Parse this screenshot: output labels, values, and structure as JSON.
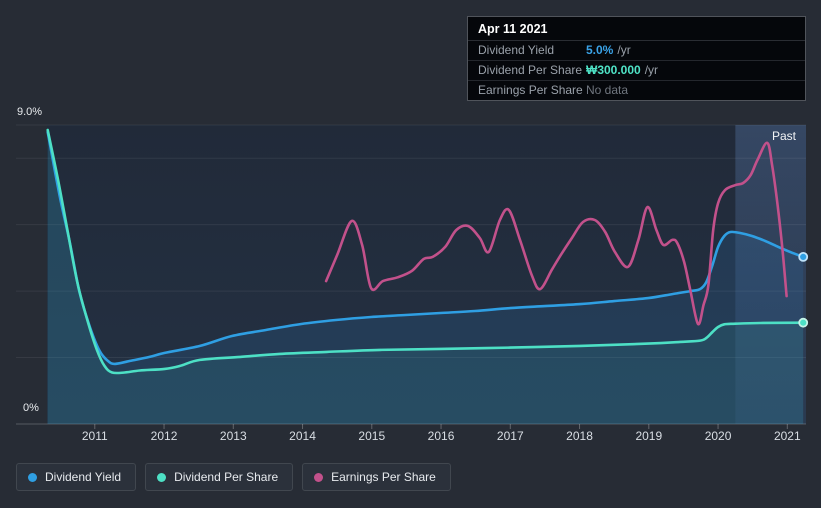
{
  "page": {
    "background": "#272c35"
  },
  "tooltip": {
    "date": "Apr 11 2021",
    "rows": [
      {
        "label": "Dividend Yield",
        "value": "5.0%",
        "suffix": "/yr",
        "value_color": "#3aa3e8"
      },
      {
        "label": "Dividend Per Share",
        "value": "₩300.000",
        "suffix": "/yr",
        "value_color": "#4fe4c7"
      },
      {
        "label": "Earnings Per Share",
        "value": "No data",
        "suffix": "",
        "value_color": "#70767f"
      }
    ]
  },
  "past_label": "Past",
  "axis": {
    "y_top_label": "9.0%",
    "y_bottom_label": "0%",
    "years": [
      "2011",
      "2012",
      "2013",
      "2014",
      "2015",
      "2016",
      "2017",
      "2018",
      "2019",
      "2020",
      "2021"
    ]
  },
  "legend": [
    {
      "label": "Dividend Yield",
      "color": "#2f9fe3"
    },
    {
      "label": "Dividend Per Share",
      "color": "#4de0c5"
    },
    {
      "label": "Earnings Per Share",
      "color": "#c2518b"
    }
  ],
  "chart_data": {
    "type": "line",
    "title": "",
    "xlabel": "",
    "ylabel": "",
    "xlim": [
      2010.31,
      2021.27
    ],
    "ylim": [
      0,
      9
    ],
    "yticks": [
      {
        "value": 0,
        "label": "0%"
      },
      {
        "value": 9,
        "label": "9.0%"
      }
    ],
    "y_gridlines_pct": [
      2,
      4,
      6,
      8,
      9
    ],
    "grid": true,
    "legend_position": "bottom-left",
    "past_band_start_year": 2020.25,
    "highlight_date": "Apr 11 2021",
    "highlight_values": {
      "dividend_yield": "5.0% /yr",
      "dividend_per_share": "₩300.000 /yr",
      "earnings_per_share": "No data"
    },
    "series": [
      {
        "name": "Dividend Yield",
        "color": "#2f9fe3",
        "area_fill": "rgba(45,120,190,0.18)",
        "end_dot": true,
        "dot_ring": "#bfe3fa",
        "points": [
          [
            2010.32,
            8.79
          ],
          [
            2010.49,
            6.89
          ],
          [
            2010.64,
            5.45
          ],
          [
            2010.78,
            3.97
          ],
          [
            2010.93,
            2.92
          ],
          [
            2011.07,
            2.2
          ],
          [
            2011.19,
            1.9
          ],
          [
            2011.29,
            1.81
          ],
          [
            2011.51,
            1.9
          ],
          [
            2011.79,
            2.02
          ],
          [
            2012.01,
            2.14
          ],
          [
            2012.52,
            2.35
          ],
          [
            2012.98,
            2.65
          ],
          [
            2013.47,
            2.83
          ],
          [
            2013.98,
            3.01
          ],
          [
            2014.48,
            3.13
          ],
          [
            2014.99,
            3.22
          ],
          [
            2015.49,
            3.28
          ],
          [
            2015.99,
            3.34
          ],
          [
            2016.49,
            3.4
          ],
          [
            2017.0,
            3.49
          ],
          [
            2017.5,
            3.55
          ],
          [
            2018.01,
            3.61
          ],
          [
            2018.5,
            3.7
          ],
          [
            2018.99,
            3.79
          ],
          [
            2019.34,
            3.91
          ],
          [
            2019.6,
            4.0
          ],
          [
            2019.74,
            4.06
          ],
          [
            2019.83,
            4.27
          ],
          [
            2019.92,
            4.79
          ],
          [
            2020.0,
            5.33
          ],
          [
            2020.09,
            5.66
          ],
          [
            2020.18,
            5.78
          ],
          [
            2020.32,
            5.75
          ],
          [
            2020.49,
            5.66
          ],
          [
            2020.68,
            5.51
          ],
          [
            2020.87,
            5.33
          ],
          [
            2021.04,
            5.18
          ],
          [
            2021.23,
            5.03
          ]
        ]
      },
      {
        "name": "Dividend Per Share",
        "color": "#4de0c5",
        "area_fill": "rgba(70,220,195,0.09)",
        "end_dot": true,
        "dot_ring": "#c6f4e8",
        "points": [
          [
            2010.32,
            8.85
          ],
          [
            2010.47,
            7.34
          ],
          [
            2010.61,
            5.78
          ],
          [
            2010.75,
            4.24
          ],
          [
            2010.9,
            3.07
          ],
          [
            2011.03,
            2.23
          ],
          [
            2011.14,
            1.75
          ],
          [
            2011.25,
            1.55
          ],
          [
            2011.43,
            1.55
          ],
          [
            2011.65,
            1.61
          ],
          [
            2012.01,
            1.66
          ],
          [
            2012.23,
            1.75
          ],
          [
            2012.52,
            1.93
          ],
          [
            2013.1,
            2.02
          ],
          [
            2013.67,
            2.11
          ],
          [
            2014.35,
            2.17
          ],
          [
            2015.12,
            2.23
          ],
          [
            2015.99,
            2.26
          ],
          [
            2017.0,
            2.3
          ],
          [
            2018.01,
            2.35
          ],
          [
            2018.99,
            2.42
          ],
          [
            2019.45,
            2.47
          ],
          [
            2019.74,
            2.51
          ],
          [
            2019.83,
            2.59
          ],
          [
            2019.92,
            2.77
          ],
          [
            2020.0,
            2.92
          ],
          [
            2020.09,
            3.0
          ],
          [
            2020.25,
            3.02
          ],
          [
            2020.61,
            3.04
          ],
          [
            2021.23,
            3.05
          ]
        ]
      },
      {
        "name": "Earnings Per Share",
        "color": "#c2518b",
        "area_fill": null,
        "end_dot": false,
        "points": [
          [
            2014.34,
            4.3
          ],
          [
            2014.5,
            5.09
          ],
          [
            2014.71,
            6.11
          ],
          [
            2014.86,
            5.39
          ],
          [
            2014.99,
            4.09
          ],
          [
            2015.16,
            4.3
          ],
          [
            2015.38,
            4.42
          ],
          [
            2015.58,
            4.61
          ],
          [
            2015.75,
            4.97
          ],
          [
            2015.88,
            5.03
          ],
          [
            2016.06,
            5.33
          ],
          [
            2016.22,
            5.84
          ],
          [
            2016.39,
            5.96
          ],
          [
            2016.56,
            5.6
          ],
          [
            2016.69,
            5.18
          ],
          [
            2016.85,
            6.14
          ],
          [
            2016.98,
            6.44
          ],
          [
            2017.14,
            5.54
          ],
          [
            2017.31,
            4.48
          ],
          [
            2017.43,
            4.06
          ],
          [
            2017.6,
            4.64
          ],
          [
            2017.72,
            5.06
          ],
          [
            2017.89,
            5.6
          ],
          [
            2018.05,
            6.08
          ],
          [
            2018.22,
            6.14
          ],
          [
            2018.37,
            5.78
          ],
          [
            2018.51,
            5.18
          ],
          [
            2018.7,
            4.73
          ],
          [
            2018.85,
            5.54
          ],
          [
            2018.98,
            6.53
          ],
          [
            2019.11,
            5.84
          ],
          [
            2019.21,
            5.39
          ],
          [
            2019.34,
            5.54
          ],
          [
            2019.41,
            5.45
          ],
          [
            2019.51,
            4.88
          ],
          [
            2019.6,
            4.03
          ],
          [
            2019.71,
            3.01
          ],
          [
            2019.79,
            3.58
          ],
          [
            2019.86,
            4.18
          ],
          [
            2019.93,
            5.84
          ],
          [
            2020.0,
            6.65
          ],
          [
            2020.1,
            7.04
          ],
          [
            2020.25,
            7.19
          ],
          [
            2020.36,
            7.25
          ],
          [
            2020.47,
            7.49
          ],
          [
            2020.57,
            7.95
          ],
          [
            2020.71,
            8.46
          ],
          [
            2020.78,
            7.79
          ],
          [
            2020.86,
            6.59
          ],
          [
            2020.93,
            5.24
          ],
          [
            2020.99,
            3.85
          ]
        ]
      }
    ]
  }
}
